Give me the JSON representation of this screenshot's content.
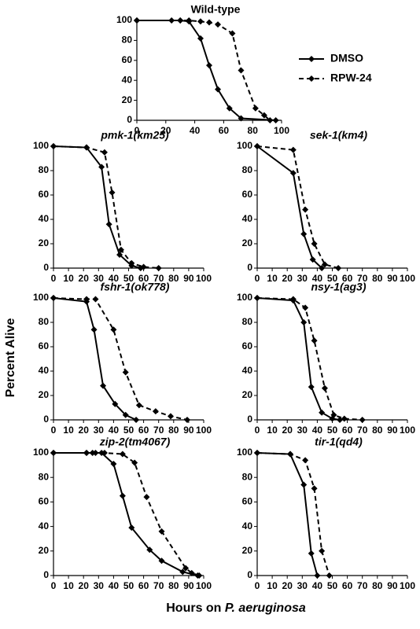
{
  "y_label": "Percent Alive",
  "x_label": [
    "Hours on ",
    "P. aeruginosa"
  ],
  "chart_data": [
    {
      "type": "line",
      "title": "Wild-type",
      "title_italic": false,
      "legend": true,
      "xlim": [
        0,
        100
      ],
      "xticks": [
        0,
        20,
        40,
        60,
        80,
        100
      ],
      "ylim": [
        0,
        100
      ],
      "yticks": [
        0,
        20,
        40,
        60,
        80,
        100
      ],
      "series": [
        {
          "name": "DMSO",
          "style": "solid",
          "color": "#000000",
          "x": [
            0,
            24,
            30,
            36,
            44,
            50,
            56,
            64,
            72,
            96
          ],
          "values": [
            100,
            100,
            100,
            99,
            82,
            55,
            31,
            12,
            2,
            0
          ]
        },
        {
          "name": "RPW-24",
          "style": "dashed",
          "color": "#000000",
          "x": [
            0,
            30,
            36,
            44,
            50,
            56,
            66,
            72,
            82,
            88,
            92
          ],
          "values": [
            100,
            100,
            100,
            99,
            98,
            96,
            87,
            50,
            12,
            5,
            0
          ]
        }
      ]
    },
    {
      "type": "line",
      "title": "pmk-1(km25)",
      "title_italic": true,
      "legend": false,
      "xlim": [
        0,
        100
      ],
      "xticks": [
        0,
        10,
        20,
        30,
        40,
        50,
        60,
        70,
        80,
        90,
        100
      ],
      "ylim": [
        0,
        100
      ],
      "yticks": [
        0,
        20,
        40,
        60,
        80,
        100
      ],
      "series": [
        {
          "style": "solid",
          "color": "#000000",
          "x": [
            0,
            22,
            32,
            37,
            44,
            52,
            58
          ],
          "values": [
            100,
            99,
            83,
            36,
            11,
            2,
            0
          ]
        },
        {
          "style": "dashed",
          "color": "#000000",
          "x": [
            0,
            22,
            34,
            39,
            45,
            52,
            60,
            70
          ],
          "values": [
            100,
            99,
            95,
            62,
            15,
            4,
            1,
            0
          ]
        }
      ]
    },
    {
      "type": "line",
      "title": "sek-1(km4)",
      "title_italic": true,
      "legend": false,
      "xlim": [
        0,
        100
      ],
      "xticks": [
        0,
        10,
        20,
        30,
        40,
        50,
        60,
        70,
        80,
        90,
        100
      ],
      "ylim": [
        0,
        100
      ],
      "yticks": [
        0,
        20,
        40,
        60,
        80,
        100
      ],
      "series": [
        {
          "style": "solid",
          "color": "#000000",
          "x": [
            0,
            24,
            31,
            37,
            43
          ],
          "values": [
            100,
            78,
            28,
            7,
            0
          ]
        },
        {
          "style": "dashed",
          "color": "#000000",
          "x": [
            0,
            24,
            32,
            38,
            45,
            54
          ],
          "values": [
            100,
            97,
            48,
            20,
            3,
            0
          ]
        }
      ]
    },
    {
      "type": "line",
      "title": "fshr-1(ok778)",
      "title_italic": true,
      "legend": false,
      "xlim": [
        0,
        100
      ],
      "xticks": [
        0,
        10,
        20,
        30,
        40,
        50,
        60,
        70,
        80,
        90,
        100
      ],
      "ylim": [
        0,
        100
      ],
      "yticks": [
        0,
        20,
        40,
        60,
        80,
        100
      ],
      "series": [
        {
          "style": "solid",
          "color": "#000000",
          "x": [
            0,
            22,
            27,
            33,
            41,
            48,
            55
          ],
          "values": [
            100,
            97,
            74,
            28,
            13,
            4,
            0
          ]
        },
        {
          "style": "dashed",
          "color": "#000000",
          "x": [
            0,
            22,
            28,
            40,
            48,
            57,
            68,
            78,
            89
          ],
          "values": [
            100,
            99,
            99,
            74,
            39,
            12,
            7,
            3,
            0
          ]
        }
      ]
    },
    {
      "type": "line",
      "title": "nsy-1(ag3)",
      "title_italic": true,
      "legend": false,
      "xlim": [
        0,
        100
      ],
      "xticks": [
        0,
        10,
        20,
        30,
        40,
        50,
        60,
        70,
        80,
        90,
        100
      ],
      "ylim": [
        0,
        100
      ],
      "yticks": [
        0,
        20,
        40,
        60,
        80,
        100
      ],
      "series": [
        {
          "style": "solid",
          "color": "#000000",
          "x": [
            0,
            24,
            31,
            36,
            43,
            50,
            55
          ],
          "values": [
            100,
            98,
            80,
            27,
            6,
            1,
            0
          ]
        },
        {
          "style": "dashed",
          "color": "#000000",
          "x": [
            0,
            24,
            32,
            38,
            45,
            51,
            58,
            70
          ],
          "values": [
            100,
            99,
            92,
            65,
            26,
            4,
            1,
            0
          ]
        }
      ]
    },
    {
      "type": "line",
      "title": "zip-2(tm4067)",
      "title_italic": true,
      "legend": false,
      "xlim": [
        0,
        100
      ],
      "xticks": [
        0,
        10,
        20,
        30,
        40,
        50,
        60,
        70,
        80,
        90,
        100
      ],
      "ylim": [
        0,
        100
      ],
      "yticks": [
        0,
        20,
        40,
        60,
        80,
        100
      ],
      "series": [
        {
          "style": "solid",
          "color": "#000000",
          "x": [
            0,
            22,
            26,
            32,
            40,
            46,
            52,
            64,
            72,
            86,
            96
          ],
          "values": [
            100,
            100,
            100,
            100,
            91,
            65,
            39,
            21,
            12,
            3,
            0
          ]
        },
        {
          "style": "dashed",
          "color": "#000000",
          "x": [
            0,
            22,
            28,
            34,
            46,
            54,
            62,
            72,
            88,
            92,
            97
          ],
          "values": [
            100,
            100,
            100,
            100,
            99,
            92,
            64,
            36,
            6,
            2,
            0
          ]
        }
      ]
    },
    {
      "type": "line",
      "title": "tir-1(qd4)",
      "title_italic": true,
      "legend": false,
      "xlim": [
        0,
        100
      ],
      "xticks": [
        0,
        10,
        20,
        30,
        40,
        50,
        60,
        70,
        80,
        90,
        100
      ],
      "ylim": [
        0,
        100
      ],
      "yticks": [
        0,
        20,
        40,
        60,
        80,
        100
      ],
      "series": [
        {
          "style": "solid",
          "color": "#000000",
          "x": [
            0,
            22,
            31,
            36,
            40
          ],
          "values": [
            100,
            99,
            74,
            18,
            0
          ]
        },
        {
          "style": "dashed",
          "color": "#000000",
          "x": [
            0,
            22,
            32,
            38,
            43,
            48
          ],
          "values": [
            100,
            99,
            94,
            71,
            20,
            0
          ]
        }
      ]
    }
  ]
}
